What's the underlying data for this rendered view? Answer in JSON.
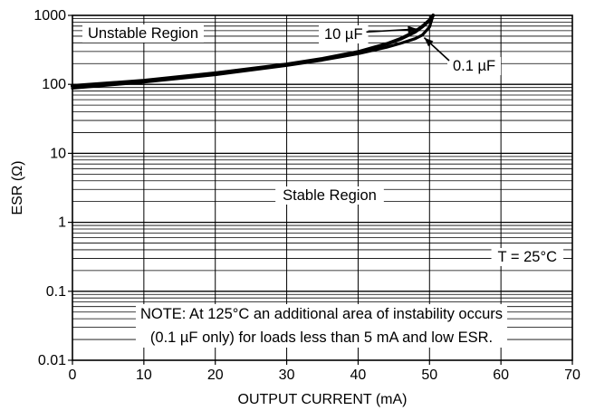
{
  "chart_data": {
    "type": "line",
    "xlabel": "OUTPUT CURRENT (mA)",
    "ylabel": "ESR (Ω)",
    "xlim": [
      0,
      70
    ],
    "ylim": [
      0.01,
      1000
    ],
    "yscale": "log",
    "grid": true,
    "x_ticks": [
      0,
      10,
      20,
      30,
      40,
      50,
      60,
      70
    ],
    "x_tick_labels": [
      "0",
      "10",
      "20",
      "30",
      "40",
      "50",
      "60",
      "70"
    ],
    "y_ticks": [
      0.01,
      0.1,
      1,
      10,
      100,
      1000
    ],
    "y_tick_labels": [
      "0.01",
      "0.1",
      "1",
      "10",
      "100",
      "1000"
    ],
    "series": [
      {
        "name": "10 µF",
        "x": [
          0,
          10,
          20,
          30,
          35,
          40,
          44,
          46,
          48,
          49,
          50,
          50.5
        ],
        "y": [
          95,
          113,
          145,
          195,
          235,
          295,
          385,
          460,
          580,
          690,
          850,
          1000
        ]
      },
      {
        "name": "0.1 µF",
        "x": [
          0,
          10,
          20,
          30,
          35,
          40,
          44,
          46,
          48,
          49,
          50,
          50.5
        ],
        "y": [
          88,
          108,
          138,
          188,
          225,
          278,
          345,
          395,
          460,
          520,
          680,
          1000
        ]
      }
    ],
    "annotations": {
      "unstable": "Unstable Region",
      "stable": "Stable Region",
      "temp": "T = 25°C",
      "note_line1": "NOTE: At 125°C an additional area of instability occurs",
      "note_line2": "(0.1 µF only) for loads less than 5 mA and low ESR."
    }
  }
}
